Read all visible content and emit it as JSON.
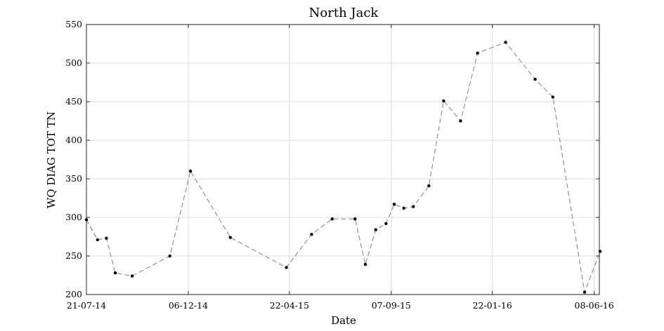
{
  "chart_data": {
    "type": "line",
    "title": "North Jack",
    "xlabel": "Date",
    "ylabel": "WQ DIAG TOT TN",
    "ylim": [
      200,
      550
    ],
    "yticks": [
      200,
      250,
      300,
      350,
      400,
      450,
      500,
      550
    ],
    "xticks": [
      "21-07-14",
      "06-12-14",
      "22-04-15",
      "07-09-15",
      "22-01-16",
      "08-06-16"
    ],
    "xlim": [
      "21-07-14",
      "15-06-16"
    ],
    "grid": true,
    "line_style": "dashed",
    "line_color": "#8a8a8a",
    "marker_color": "#000000",
    "series": [
      {
        "x": [
          "21-07-14",
          "05-08-14",
          "17-08-14",
          "29-08-14",
          "21-09-14",
          "11-11-14",
          "09-12-14",
          "01-02-15",
          "18-04-15",
          "22-05-15",
          "19-06-15",
          "20-07-15",
          "03-08-15",
          "17-08-15",
          "31-08-15",
          "11-09-15",
          "24-09-15",
          "07-10-15",
          "28-10-15",
          "17-11-15",
          "10-12-15",
          "02-01-16",
          "09-02-16",
          "20-03-16",
          "13-04-16",
          "26-05-16",
          "16-06-16"
        ],
        "y": [
          297,
          271,
          273,
          228,
          224,
          250,
          360,
          274,
          235,
          278,
          298,
          298,
          239,
          284,
          292,
          317,
          312,
          314,
          341,
          451,
          425,
          513,
          527,
          479,
          456,
          203,
          256
        ]
      }
    ]
  }
}
